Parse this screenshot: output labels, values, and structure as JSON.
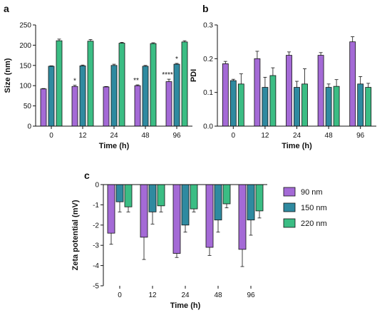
{
  "colors": {
    "90 nm": "#a46ad6",
    "150 nm": "#2f8aa0",
    "220 nm": "#3bbd84",
    "axis": "#111111"
  },
  "legend": [
    "90 nm",
    "150 nm",
    "220 nm"
  ],
  "chart_data": [
    {
      "id": "a",
      "panel_label": "a",
      "type": "bar",
      "xlabel": "Time (h)",
      "ylabel": "Size (nm)",
      "categories": [
        "0",
        "12",
        "24",
        "48",
        "96"
      ],
      "ylim": [
        0,
        250
      ],
      "yticks": [
        0,
        50,
        100,
        150,
        200,
        250
      ],
      "series": [
        {
          "name": "90 nm",
          "values": [
            92,
            98,
            97,
            100,
            110
          ],
          "errors": [
            1,
            3,
            1,
            2,
            6
          ]
        },
        {
          "name": "150 nm",
          "values": [
            148,
            149,
            150,
            148,
            153
          ],
          "errors": [
            1,
            2,
            3,
            2,
            2
          ]
        },
        {
          "name": "220 nm",
          "values": [
            211,
            210,
            205,
            204,
            208
          ],
          "errors": [
            4,
            4,
            2,
            2,
            3
          ]
        }
      ],
      "annotations": [
        {
          "category": "12",
          "series": "90 nm",
          "text": "*"
        },
        {
          "category": "48",
          "series": "90 nm",
          "text": "**"
        },
        {
          "category": "96",
          "series": "90 nm",
          "text": "****"
        },
        {
          "category": "96",
          "series": "150 nm",
          "text": "*"
        }
      ]
    },
    {
      "id": "b",
      "panel_label": "b",
      "type": "bar",
      "xlabel": "Time (h)",
      "ylabel": "PDI",
      "categories": [
        "0",
        "12",
        "24",
        "48",
        "96"
      ],
      "ylim": [
        0,
        0.3
      ],
      "yticks": [
        0.0,
        0.1,
        0.2,
        0.3
      ],
      "ytick_labels": [
        "0.0",
        "0.1",
        "0.2",
        "0.3"
      ],
      "series": [
        {
          "name": "90 nm",
          "values": [
            0.185,
            0.2,
            0.21,
            0.21,
            0.25
          ],
          "errors": [
            0.007,
            0.022,
            0.01,
            0.008,
            0.015
          ]
        },
        {
          "name": "150 nm",
          "values": [
            0.135,
            0.115,
            0.115,
            0.115,
            0.125
          ],
          "errors": [
            0.004,
            0.03,
            0.018,
            0.01,
            0.022
          ]
        },
        {
          "name": "220 nm",
          "values": [
            0.125,
            0.15,
            0.125,
            0.118,
            0.115
          ],
          "errors": [
            0.03,
            0.023,
            0.045,
            0.02,
            0.012
          ]
        }
      ]
    },
    {
      "id": "c",
      "panel_label": "c",
      "type": "bar",
      "xlabel": "Time (h)",
      "ylabel": "Zeta potential (mV)",
      "categories": [
        "0",
        "12",
        "24",
        "48",
        "96"
      ],
      "ylim": [
        -5,
        0
      ],
      "yticks": [
        0,
        -1,
        -2,
        -3,
        -4,
        -5
      ],
      "series": [
        {
          "name": "90 nm",
          "values": [
            -2.4,
            -2.6,
            -3.4,
            -3.1,
            -3.2
          ],
          "errors": [
            0.55,
            1.1,
            0.2,
            0.4,
            0.85
          ]
        },
        {
          "name": "150 nm",
          "values": [
            -0.85,
            -1.35,
            -2.0,
            -1.75,
            -1.75
          ],
          "errors": [
            0.5,
            0.6,
            0.35,
            0.6,
            0.75
          ]
        },
        {
          "name": "220 nm",
          "values": [
            -1.1,
            -1.05,
            -1.2,
            -0.95,
            -1.3
          ],
          "errors": [
            0.25,
            0.3,
            0.15,
            0.2,
            0.35
          ]
        }
      ],
      "legend_position": "right"
    }
  ]
}
